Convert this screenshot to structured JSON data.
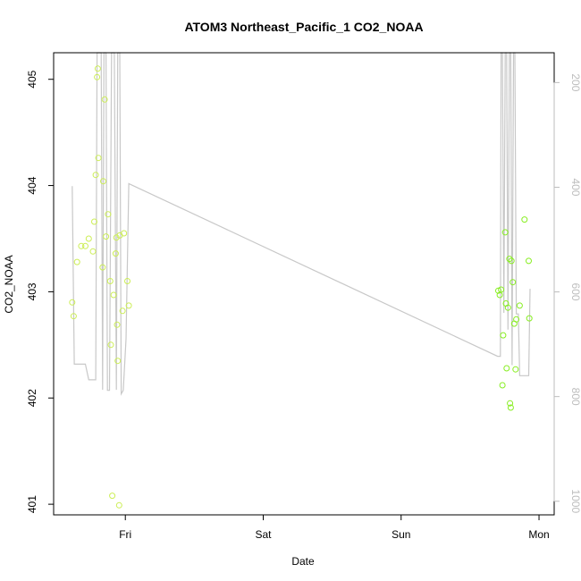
{
  "chart_data": {
    "type": "scatter",
    "title": "ATOM3 Northeast_Pacific_1 CO2_NOAA",
    "xlabel": "Date",
    "ylabel": "CO2_NOAA",
    "x_unit": "days",
    "x_ticks": [
      {
        "x": 0,
        "label": "Fri"
      },
      {
        "x": 1,
        "label": "Sat"
      },
      {
        "x": 2,
        "label": "Sun"
      },
      {
        "x": 3,
        "label": "Mon"
      }
    ],
    "xlim": [
      -0.52,
      3.11
    ],
    "ylim": [
      400.9,
      405.25
    ],
    "y_ticks": [
      401,
      402,
      403,
      404,
      405
    ],
    "y2_ticks": [
      200,
      400,
      600,
      800,
      1000
    ],
    "y2lim": [
      1026,
      143
    ],
    "grid": false,
    "colors": {
      "points_early": "#ccee55",
      "points_late": "#88ee22",
      "line": "#c8c8c8",
      "axis": "#000000",
      "right_axis": "#bdbdbd"
    },
    "series": [
      {
        "kind": "points",
        "values": [
          {
            "x": -0.385,
            "y": 402.9
          },
          {
            "x": -0.375,
            "y": 402.77
          },
          {
            "x": -0.35,
            "y": 403.28
          },
          {
            "x": -0.32,
            "y": 403.43
          },
          {
            "x": -0.29,
            "y": 403.43
          },
          {
            "x": -0.265,
            "y": 403.5
          },
          {
            "x": -0.235,
            "y": 403.38
          },
          {
            "x": -0.225,
            "y": 403.66
          },
          {
            "x": -0.215,
            "y": 404.1
          },
          {
            "x": -0.205,
            "y": 405.02
          },
          {
            "x": -0.2,
            "y": 405.1
          },
          {
            "x": -0.195,
            "y": 404.26
          },
          {
            "x": -0.165,
            "y": 403.23
          },
          {
            "x": -0.16,
            "y": 404.04
          },
          {
            "x": -0.15,
            "y": 404.81
          },
          {
            "x": -0.14,
            "y": 403.52
          },
          {
            "x": -0.125,
            "y": 403.73
          },
          {
            "x": -0.11,
            "y": 403.1
          },
          {
            "x": -0.105,
            "y": 402.5
          },
          {
            "x": -0.095,
            "y": 401.08
          },
          {
            "x": -0.085,
            "y": 402.97
          },
          {
            "x": -0.07,
            "y": 403.36
          },
          {
            "x": -0.065,
            "y": 403.51
          },
          {
            "x": -0.06,
            "y": 402.69
          },
          {
            "x": -0.055,
            "y": 402.35
          },
          {
            "x": -0.045,
            "y": 400.99
          },
          {
            "x": -0.04,
            "y": 403.53
          },
          {
            "x": -0.02,
            "y": 402.82
          },
          {
            "x": -0.01,
            "y": 403.55
          },
          {
            "x": 0.015,
            "y": 403.1
          },
          {
            "x": 0.025,
            "y": 402.87
          },
          {
            "x": 2.705,
            "y": 403.01
          },
          {
            "x": 2.715,
            "y": 402.97
          },
          {
            "x": 2.725,
            "y": 403.02
          },
          {
            "x": 2.735,
            "y": 402.12
          },
          {
            "x": 2.74,
            "y": 402.59
          },
          {
            "x": 2.755,
            "y": 403.56
          },
          {
            "x": 2.76,
            "y": 402.89
          },
          {
            "x": 2.765,
            "y": 402.28
          },
          {
            "x": 2.775,
            "y": 402.85
          },
          {
            "x": 2.785,
            "y": 403.31
          },
          {
            "x": 2.79,
            "y": 401.95
          },
          {
            "x": 2.795,
            "y": 401.91
          },
          {
            "x": 2.8,
            "y": 403.29
          },
          {
            "x": 2.81,
            "y": 403.09
          },
          {
            "x": 2.82,
            "y": 402.7
          },
          {
            "x": 2.83,
            "y": 402.27
          },
          {
            "x": 2.835,
            "y": 402.74
          },
          {
            "x": 2.86,
            "y": 402.87
          },
          {
            "x": 2.895,
            "y": 403.68
          },
          {
            "x": 2.925,
            "y": 403.29
          },
          {
            "x": 2.93,
            "y": 402.75
          }
        ]
      },
      {
        "kind": "line",
        "axis": "right",
        "values": [
          {
            "x": -0.385,
            "y": 398
          },
          {
            "x": -0.37,
            "y": 738
          },
          {
            "x": -0.29,
            "y": 738
          },
          {
            "x": -0.265,
            "y": 768
          },
          {
            "x": -0.215,
            "y": 768
          },
          {
            "x": -0.205,
            "y": 143
          },
          {
            "x": -0.175,
            "y": 143
          },
          {
            "x": -0.165,
            "y": 787
          },
          {
            "x": -0.155,
            "y": 143
          },
          {
            "x": -0.14,
            "y": 143
          },
          {
            "x": -0.13,
            "y": 788
          },
          {
            "x": -0.115,
            "y": 788
          },
          {
            "x": -0.1,
            "y": 143
          },
          {
            "x": -0.08,
            "y": 143
          },
          {
            "x": -0.065,
            "y": 787
          },
          {
            "x": -0.055,
            "y": 143
          },
          {
            "x": -0.04,
            "y": 143
          },
          {
            "x": -0.03,
            "y": 795
          },
          {
            "x": -0.015,
            "y": 788
          },
          {
            "x": 0.005,
            "y": 690
          },
          {
            "x": 0.025,
            "y": 393
          },
          {
            "x": 2.7,
            "y": 723
          },
          {
            "x": 2.72,
            "y": 723
          },
          {
            "x": 2.725,
            "y": 143
          },
          {
            "x": 2.735,
            "y": 143
          },
          {
            "x": 2.745,
            "y": 640
          },
          {
            "x": 2.755,
            "y": 143
          },
          {
            "x": 2.765,
            "y": 143
          },
          {
            "x": 2.775,
            "y": 672
          },
          {
            "x": 2.785,
            "y": 143
          },
          {
            "x": 2.795,
            "y": 143
          },
          {
            "x": 2.805,
            "y": 740
          },
          {
            "x": 2.815,
            "y": 143
          },
          {
            "x": 2.825,
            "y": 143
          },
          {
            "x": 2.835,
            "y": 642
          },
          {
            "x": 2.85,
            "y": 642
          },
          {
            "x": 2.86,
            "y": 760
          },
          {
            "x": 2.925,
            "y": 760
          },
          {
            "x": 2.935,
            "y": 594
          }
        ]
      }
    ]
  }
}
